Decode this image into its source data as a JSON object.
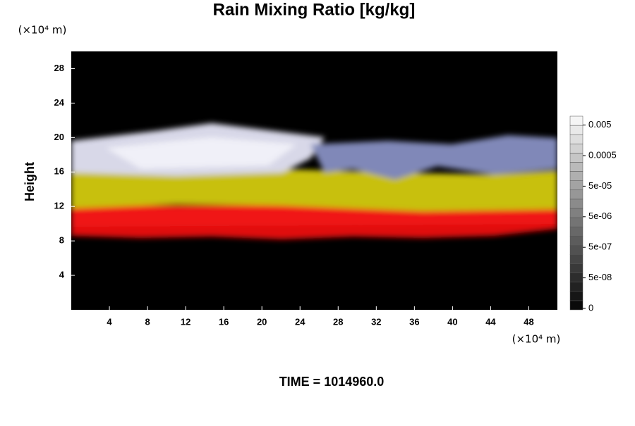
{
  "chart_data": {
    "type": "heatmap",
    "title": "Rain Mixing Ratio [kg/kg]",
    "ylabel": "Height",
    "y_unit": "(×10⁴ m)",
    "x_unit": "(×10⁴ m)",
    "footer": "TIME = 1014960.0",
    "xlim": [
      0,
      51
    ],
    "xticks": [
      4,
      8,
      12,
      16,
      20,
      24,
      28,
      32,
      36,
      40,
      44,
      48
    ],
    "ylim": [
      0,
      30
    ],
    "yticks": [
      4,
      8,
      12,
      16,
      20,
      24,
      28
    ],
    "colorbar_ticks": [
      0,
      {
        "value": 5e-08,
        "label": "5e-08"
      },
      {
        "value": 5e-07,
        "label": "5e-07"
      },
      {
        "value": 5e-06,
        "label": "5e-06"
      },
      {
        "value": 5e-05,
        "label": "5e-05"
      },
      0.0005,
      0.005
    ]
  }
}
